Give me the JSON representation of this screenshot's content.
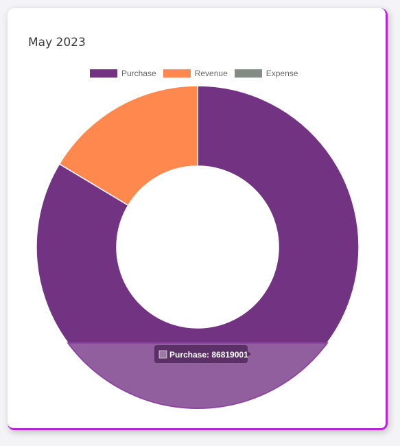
{
  "card": {
    "title": "May 2023"
  },
  "chart_data": {
    "type": "pie",
    "title": "",
    "donut": true,
    "labels": [
      "Purchase",
      "Revenue",
      "Expense"
    ],
    "values": [
      86819001,
      17017000,
      0
    ],
    "colors": [
      "#733383",
      "#ff884e",
      "#838b85"
    ],
    "legend": "top",
    "tooltip": {
      "text": "Purchase: 86819001",
      "series": "Purchase"
    }
  },
  "colors": {
    "accent_border": "#b526d6"
  }
}
